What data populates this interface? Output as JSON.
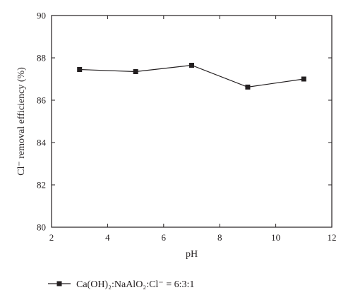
{
  "chart_data": {
    "type": "line",
    "title": "",
    "xlabel": "pH",
    "ylabel": "Cl⁻ removal efficiency (%)",
    "xlim": [
      2,
      12
    ],
    "ylim": [
      80,
      90
    ],
    "xticks": [
      2,
      4,
      6,
      8,
      10,
      12
    ],
    "yticks": [
      80,
      82,
      84,
      86,
      88,
      90
    ],
    "grid": false,
    "legend_position": "bottom-left",
    "series": [
      {
        "name": "Ca(OH)₂:NaAlO₂:Cl⁻ = 6:3:1",
        "marker": "square",
        "color": "#231f20",
        "x": [
          3,
          5,
          7,
          9,
          11
        ],
        "y": [
          87.45,
          87.35,
          87.65,
          86.62,
          87.0
        ]
      }
    ]
  }
}
